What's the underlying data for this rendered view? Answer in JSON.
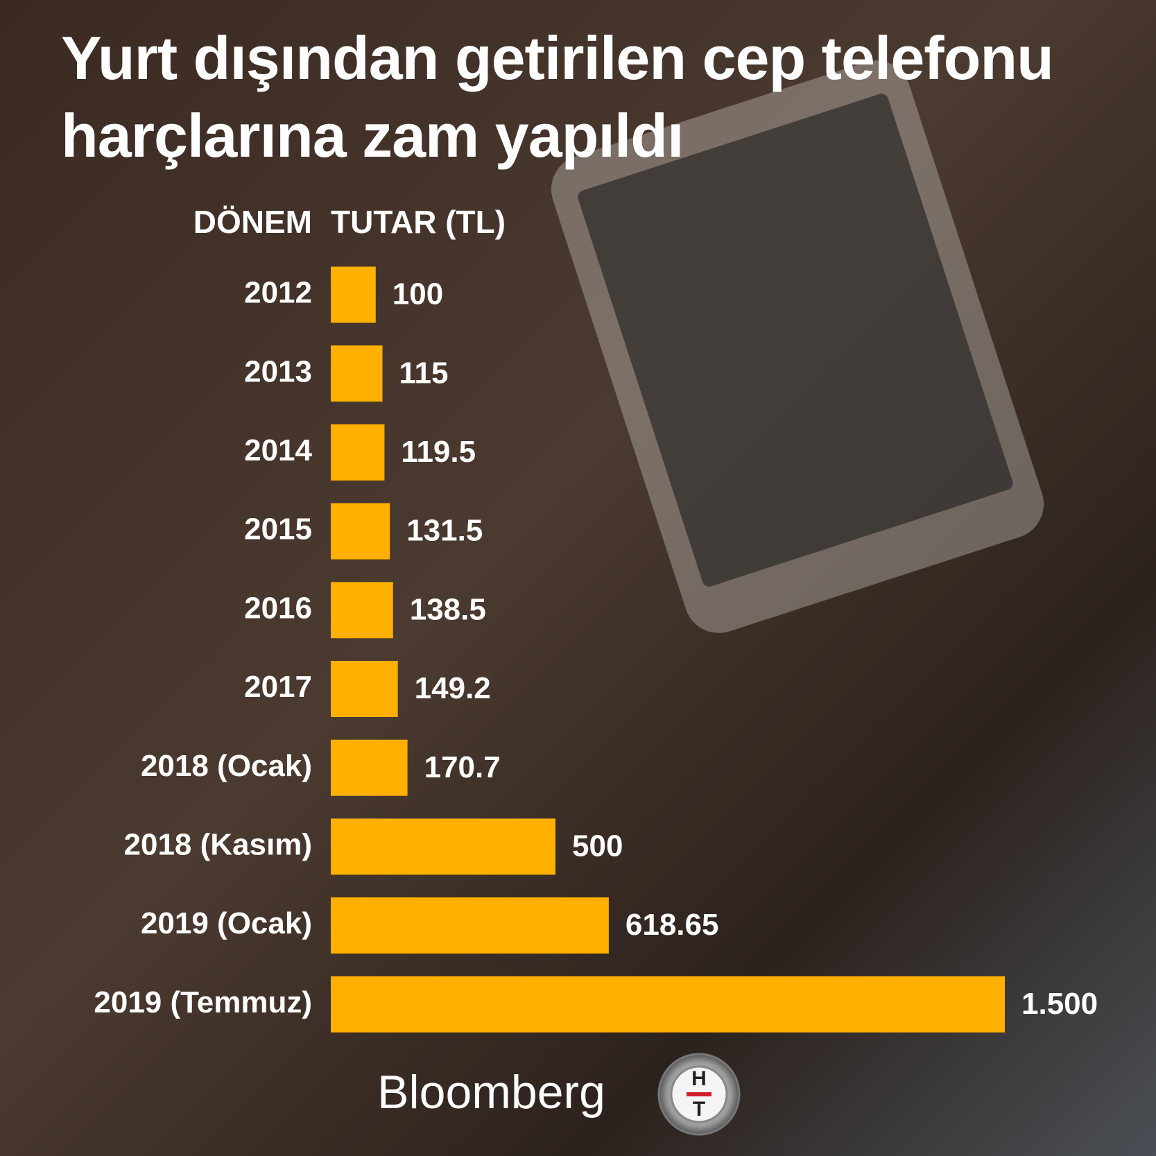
{
  "chart_data": {
    "type": "barh",
    "title": "Yurt dışından getirilen cep telefonu harçlarına zam yapıldı",
    "category_header": "DÖNEM",
    "value_header": "TUTAR (TL)",
    "categories": [
      "2012",
      "2013",
      "2014",
      "2015",
      "2016",
      "2017",
      "2018 (Ocak)",
      "2018 (Kasım)",
      "2019 (Ocak)",
      "2019 (Temmuz)"
    ],
    "values": [
      100,
      115,
      119.5,
      131.5,
      138.5,
      149.2,
      170.7,
      500,
      618.65,
      1500
    ],
    "value_labels": [
      "100",
      "115",
      "119.5",
      "131.5",
      "138.5",
      "149.2",
      "170.7",
      "500",
      "618.65",
      "1.500"
    ],
    "color": "#ffb000",
    "source": "Bloomberg",
    "badge": {
      "top": "H",
      "bottom": "T"
    }
  }
}
